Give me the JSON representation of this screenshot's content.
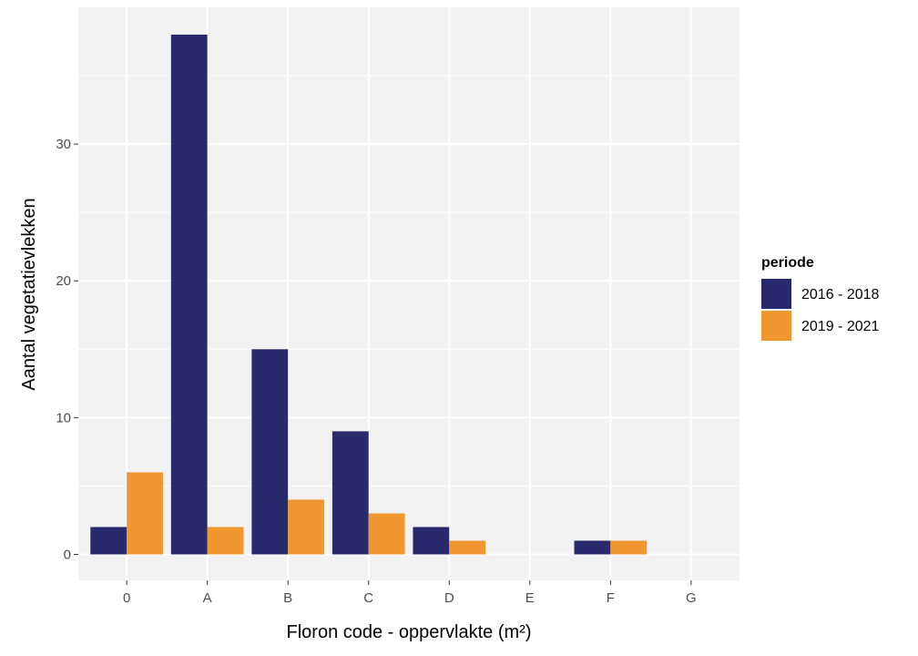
{
  "chart_data": {
    "type": "bar",
    "categories": [
      "0",
      "A",
      "B",
      "C",
      "D",
      "E",
      "F",
      "G"
    ],
    "series": [
      {
        "name": "2016 - 2018",
        "color": "#292a6e",
        "values": [
          2,
          38,
          15,
          9,
          2,
          0,
          1,
          0
        ]
      },
      {
        "name": "2019 - 2021",
        "color": "#f0982f",
        "values": [
          6,
          2,
          4,
          3,
          1,
          0,
          1,
          0
        ]
      }
    ],
    "xlabel": "Floron code - oppervlakte (m²)",
    "ylabel": "Aantal vegetatievlekken",
    "ylim": [
      -1.9,
      40
    ],
    "yticks": [
      0,
      10,
      20,
      30
    ],
    "grid": true,
    "panel_background": "#f2f2f2",
    "legend": {
      "title": "periode",
      "position": "right"
    }
  }
}
